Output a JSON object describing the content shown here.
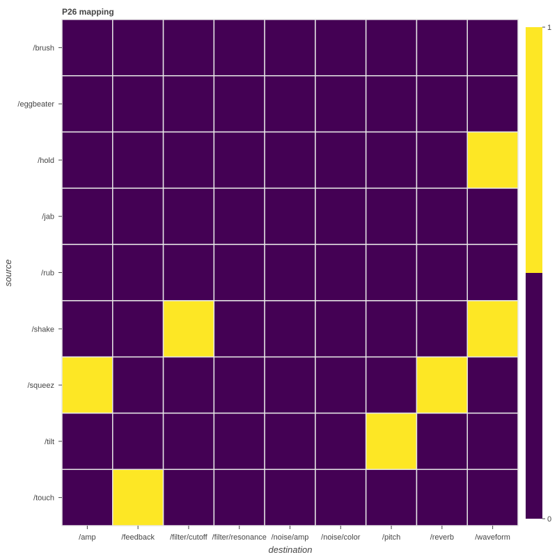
{
  "chart_data": {
    "type": "heatmap",
    "title": "P26 mapping",
    "xlabel": "destination",
    "ylabel": "source",
    "x_categories": [
      "/amp",
      "/feedback",
      "/filter/cutoff",
      "/filter/resonance",
      "/noise/amp",
      "/noise/color",
      "/pitch",
      "/reverb",
      "/waveform"
    ],
    "y_categories": [
      "/brush",
      "/eggbeater",
      "/hold",
      "/jab",
      "/rub",
      "/shake",
      "/squeez",
      "/tilt",
      "/touch"
    ],
    "values": [
      [
        0,
        0,
        0,
        0,
        0,
        0,
        0,
        0,
        0
      ],
      [
        0,
        0,
        0,
        0,
        0,
        0,
        0,
        0,
        0
      ],
      [
        0,
        0,
        0,
        0,
        0,
        0,
        0,
        0,
        1
      ],
      [
        0,
        0,
        0,
        0,
        0,
        0,
        0,
        0,
        0
      ],
      [
        0,
        0,
        0,
        0,
        0,
        0,
        0,
        0,
        0
      ],
      [
        0,
        0,
        1,
        0,
        0,
        0,
        0,
        0,
        1
      ],
      [
        1,
        0,
        0,
        0,
        0,
        0,
        0,
        1,
        0
      ],
      [
        0,
        0,
        0,
        0,
        0,
        0,
        1,
        0,
        0
      ],
      [
        0,
        1,
        0,
        0,
        0,
        0,
        0,
        0,
        0
      ]
    ],
    "zlim": [
      0,
      1
    ],
    "colorbar": {
      "ticks": [
        "0",
        "1"
      ]
    },
    "colors": {
      "low": "#440154",
      "high": "#fde725",
      "grid": "#e6e6e6"
    }
  }
}
